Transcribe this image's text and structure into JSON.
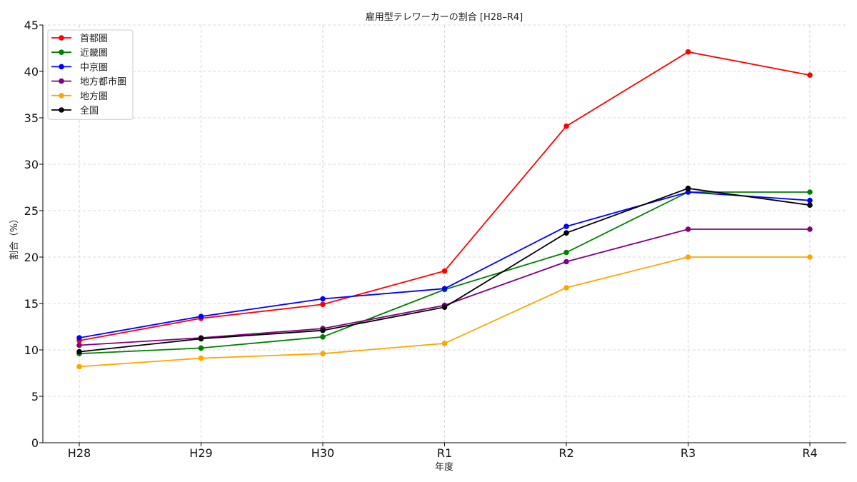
{
  "chart_data": {
    "type": "line",
    "title": "雇用型テレワーカーの割合 [H28–R4]",
    "xlabel": "年度",
    "ylabel": "割合（%）",
    "categories": [
      "H28",
      "H29",
      "H30",
      "R1",
      "R2",
      "R3",
      "R4"
    ],
    "ylim": [
      0,
      45
    ],
    "yticks": [
      0,
      5,
      10,
      15,
      20,
      25,
      30,
      35,
      40,
      45
    ],
    "grid": true,
    "legend_position": "top-left",
    "series": [
      {
        "name": "首都圏",
        "color": "#ff0000",
        "values": [
          11.0,
          13.4,
          14.9,
          18.5,
          34.1,
          42.1,
          39.6
        ]
      },
      {
        "name": "近畿圏",
        "color": "#008000",
        "values": [
          9.6,
          10.2,
          11.4,
          16.5,
          20.5,
          27.0,
          27.0
        ]
      },
      {
        "name": "中京圏",
        "color": "#0000ff",
        "values": [
          11.3,
          13.6,
          15.5,
          16.6,
          23.3,
          27.0,
          26.1
        ]
      },
      {
        "name": "地方都市圏",
        "color": "#800080",
        "values": [
          10.5,
          11.3,
          12.3,
          14.8,
          19.5,
          23.0,
          23.0
        ]
      },
      {
        "name": "地方圏",
        "color": "#ffa500",
        "values": [
          8.2,
          9.1,
          9.6,
          10.7,
          16.7,
          20.0,
          20.0
        ]
      },
      {
        "name": "全国",
        "color": "#000000",
        "values": [
          9.8,
          11.2,
          12.1,
          14.6,
          22.6,
          27.4,
          25.6
        ]
      }
    ]
  }
}
